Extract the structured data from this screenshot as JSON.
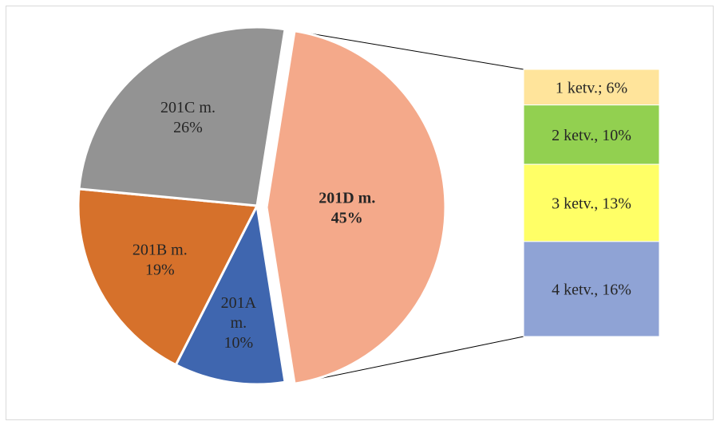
{
  "chart_data": {
    "type": "bar-of-pie",
    "slices": [
      {
        "name": "201D m.",
        "label_lines": [
          "201D m.",
          "45%"
        ],
        "value": 45,
        "color": "#F4A98A",
        "bold": true
      },
      {
        "name": "201A m.",
        "label_lines": [
          "201A",
          "m.",
          "10%"
        ],
        "value": 10,
        "color": "#3F66AF",
        "bold": false
      },
      {
        "name": "201B m.",
        "label_lines": [
          "201B m.",
          "19%"
        ],
        "value": 19,
        "color": "#D6712B",
        "bold": false
      },
      {
        "name": "201C m.",
        "label_lines": [
          "201C m.",
          "26%"
        ],
        "value": 26,
        "color": "#939393",
        "bold": false
      }
    ],
    "exploded_slice": "201D m.",
    "breakdown": [
      {
        "label": "1 ketv.; 6%",
        "value": 6,
        "color": "#FFE49B"
      },
      {
        "label": "2 ketv., 10%",
        "value": 10,
        "color": "#92D050"
      },
      {
        "label": "3 ketv., 13%",
        "value": 13,
        "color": "#FFFF66"
      },
      {
        "label": "4 ketv., 16%",
        "value": 16,
        "color": "#8FA3D5"
      }
    ]
  }
}
